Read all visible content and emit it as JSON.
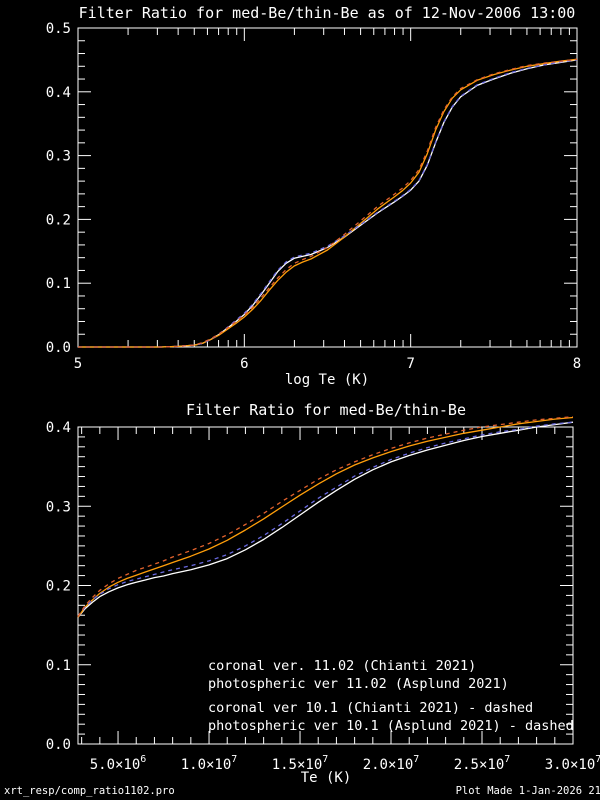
{
  "page_background": "#000000",
  "footer": {
    "left": "xrt_resp/comp_ratio1102.pro",
    "right": "Plot Made  1-Jan-2026 21"
  },
  "chart_data": [
    {
      "type": "line",
      "title": "Filter Ratio for med-Be/thin-Be as of 12-Nov-2006 13:00",
      "xlabel": "log Te (K)",
      "ylabel": "",
      "xlim": [
        5,
        8
      ],
      "ylim": [
        0,
        0.5
      ],
      "x_scale": "log",
      "grid": false,
      "x_ticks": [
        {
          "value": 5,
          "label": "5"
        },
        {
          "value": 6,
          "label": "6"
        },
        {
          "value": 7,
          "label": "7"
        },
        {
          "value": 8,
          "label": "8"
        }
      ],
      "y_ticks": [
        {
          "value": 0.0,
          "label": "0.0"
        },
        {
          "value": 0.1,
          "label": "0.1"
        },
        {
          "value": 0.2,
          "label": "0.2"
        },
        {
          "value": 0.3,
          "label": "0.3"
        },
        {
          "value": 0.4,
          "label": "0.4"
        },
        {
          "value": 0.5,
          "label": "0.5"
        }
      ],
      "y_minor_step": 0.02,
      "series": [
        {
          "name": "coronal ver. 11.02 (Chianti 2021)",
          "color": "#FFFFFF",
          "style": "solid",
          "x": [
            5.0,
            5.5,
            5.6,
            5.7,
            5.75,
            5.8,
            5.85,
            5.9,
            5.95,
            6.0,
            6.05,
            6.1,
            6.15,
            6.2,
            6.25,
            6.3,
            6.35,
            6.4,
            6.5,
            6.6,
            6.7,
            6.8,
            6.9,
            6.95,
            7.0,
            7.05,
            7.1,
            7.15,
            7.2,
            7.25,
            7.3,
            7.4,
            7.5,
            7.6,
            7.7,
            7.8,
            7.9,
            8.0
          ],
          "y": [
            0,
            0,
            0.001,
            0.003,
            0.006,
            0.012,
            0.02,
            0.03,
            0.04,
            0.051,
            0.065,
            0.082,
            0.1,
            0.118,
            0.131,
            0.139,
            0.142,
            0.145,
            0.156,
            0.172,
            0.191,
            0.21,
            0.227,
            0.236,
            0.246,
            0.26,
            0.285,
            0.32,
            0.352,
            0.376,
            0.392,
            0.41,
            0.42,
            0.429,
            0.436,
            0.442,
            0.446,
            0.45
          ]
        },
        {
          "name": "photospheric ver 11.02 (Asplund 2021)",
          "color": "#FF9E0A",
          "style": "solid",
          "x": [
            5.0,
            5.5,
            5.6,
            5.7,
            5.75,
            5.8,
            5.85,
            5.9,
            5.95,
            6.0,
            6.05,
            6.1,
            6.15,
            6.2,
            6.25,
            6.3,
            6.35,
            6.4,
            6.5,
            6.6,
            6.7,
            6.8,
            6.9,
            6.95,
            7.0,
            7.05,
            7.1,
            7.15,
            7.2,
            7.25,
            7.3,
            7.4,
            7.5,
            7.6,
            7.7,
            7.8,
            7.9,
            8.0
          ],
          "y": [
            0,
            0,
            0.001,
            0.003,
            0.006,
            0.012,
            0.019,
            0.028,
            0.037,
            0.047,
            0.059,
            0.073,
            0.089,
            0.104,
            0.117,
            0.127,
            0.133,
            0.138,
            0.152,
            0.172,
            0.194,
            0.216,
            0.235,
            0.245,
            0.257,
            0.274,
            0.303,
            0.34,
            0.369,
            0.39,
            0.403,
            0.418,
            0.427,
            0.434,
            0.44,
            0.444,
            0.448,
            0.451
          ]
        },
        {
          "name": "coronal ver 10.1 (Chianti 2021) - dashed",
          "color": "#6969E0",
          "style": "dashed",
          "x": [
            5.0,
            5.5,
            5.6,
            5.7,
            5.75,
            5.8,
            5.85,
            5.9,
            5.95,
            6.0,
            6.05,
            6.1,
            6.15,
            6.2,
            6.25,
            6.3,
            6.35,
            6.4,
            6.5,
            6.6,
            6.7,
            6.8,
            6.9,
            6.95,
            7.0,
            7.05,
            7.1,
            7.15,
            7.2,
            7.25,
            7.3,
            7.4,
            7.5,
            7.6,
            7.7,
            7.8,
            7.9,
            8.0
          ],
          "y": [
            0,
            0,
            0.001,
            0.003,
            0.006,
            0.012,
            0.021,
            0.031,
            0.042,
            0.053,
            0.067,
            0.084,
            0.102,
            0.12,
            0.133,
            0.141,
            0.144,
            0.147,
            0.158,
            0.174,
            0.192,
            0.211,
            0.228,
            0.237,
            0.247,
            0.261,
            0.286,
            0.321,
            0.353,
            0.377,
            0.393,
            0.411,
            0.421,
            0.43,
            0.437,
            0.442,
            0.447,
            0.45
          ]
        },
        {
          "name": "photospheric ver 10.1 (Asplund 2021) - dashed",
          "color": "#E2622D",
          "style": "dashed",
          "x": [
            5.0,
            5.5,
            5.6,
            5.7,
            5.75,
            5.8,
            5.85,
            5.9,
            5.95,
            6.0,
            6.05,
            6.1,
            6.15,
            6.2,
            6.25,
            6.3,
            6.35,
            6.4,
            6.5,
            6.6,
            6.7,
            6.8,
            6.9,
            6.95,
            7.0,
            7.05,
            7.1,
            7.15,
            7.2,
            7.25,
            7.3,
            7.4,
            7.5,
            7.6,
            7.7,
            7.8,
            7.9,
            8.0
          ],
          "y": [
            0,
            0,
            0.001,
            0.003,
            0.007,
            0.013,
            0.021,
            0.03,
            0.04,
            0.05,
            0.062,
            0.077,
            0.093,
            0.108,
            0.121,
            0.131,
            0.137,
            0.142,
            0.156,
            0.176,
            0.198,
            0.22,
            0.239,
            0.249,
            0.261,
            0.278,
            0.307,
            0.344,
            0.372,
            0.392,
            0.405,
            0.419,
            0.428,
            0.435,
            0.441,
            0.445,
            0.448,
            0.451
          ]
        }
      ]
    },
    {
      "type": "line",
      "title": "Filter Ratio for med-Be/thin-Be",
      "xlabel": "Te (K)",
      "ylabel": "",
      "xlim": [
        2800000,
        30000000
      ],
      "ylim": [
        0,
        0.4
      ],
      "x_scale": "linear",
      "grid": false,
      "x_ticks": [
        {
          "value": 5000000,
          "base": "5.0×10",
          "exp": "6"
        },
        {
          "value": 10000000,
          "base": "1.0×10",
          "exp": "7"
        },
        {
          "value": 15000000,
          "base": "1.5×10",
          "exp": "7"
        },
        {
          "value": 20000000,
          "base": "2.0×10",
          "exp": "7"
        },
        {
          "value": 25000000,
          "base": "2.5×10",
          "exp": "7"
        },
        {
          "value": 30000000,
          "base": "3.0×10",
          "exp": "7"
        }
      ],
      "x_minor_step": 1000000,
      "y_ticks": [
        {
          "value": 0.0,
          "label": "0.0"
        },
        {
          "value": 0.1,
          "label": "0.1"
        },
        {
          "value": 0.2,
          "label": "0.2"
        },
        {
          "value": 0.3,
          "label": "0.3"
        },
        {
          "value": 0.4,
          "label": "0.4"
        }
      ],
      "y_minor_step": 0.0125,
      "legend_position": "inside-bottom-right",
      "legend": [
        {
          "label": "coronal ver. 11.02 (Chianti 2021)",
          "color": "#FFFFFF"
        },
        {
          "label": "photospheric ver 11.02 (Asplund 2021)",
          "color": "#FF9E0A"
        },
        {
          "label": "coronal ver 10.1 (Chianti 2021) - dashed",
          "color": "#6969E0"
        },
        {
          "label": "photospheric ver 10.1 (Asplund 2021) - dashed",
          "color": "#E2622D"
        }
      ],
      "series": [
        {
          "name": "coronal ver. 11.02 (Chianti 2021)",
          "color": "#FFFFFF",
          "style": "solid",
          "x": [
            2800000,
            3200000,
            3600000,
            4000000,
            4500000,
            5000000,
            5500000,
            6000000,
            6500000,
            7000000,
            7500000,
            8000000,
            9000000,
            10000000,
            11000000,
            12000000,
            13000000,
            14000000,
            15000000,
            16000000,
            17000000,
            18000000,
            19000000,
            20000000,
            21000000,
            22000000,
            23000000,
            24000000,
            25000000,
            26000000,
            27000000,
            28000000,
            29000000,
            30000000
          ],
          "y": [
            0.16,
            0.171,
            0.179,
            0.186,
            0.192,
            0.197,
            0.201,
            0.204,
            0.207,
            0.21,
            0.212,
            0.215,
            0.22,
            0.226,
            0.234,
            0.245,
            0.258,
            0.273,
            0.289,
            0.305,
            0.32,
            0.334,
            0.346,
            0.356,
            0.364,
            0.371,
            0.377,
            0.383,
            0.388,
            0.392,
            0.396,
            0.4,
            0.403,
            0.406
          ]
        },
        {
          "name": "photospheric ver 11.02 (Asplund 2021)",
          "color": "#FF9E0A",
          "style": "solid",
          "x": [
            2800000,
            3200000,
            3600000,
            4000000,
            4500000,
            5000000,
            5500000,
            6000000,
            6500000,
            7000000,
            7500000,
            8000000,
            9000000,
            10000000,
            11000000,
            12000000,
            13000000,
            14000000,
            15000000,
            16000000,
            17000000,
            18000000,
            19000000,
            20000000,
            21000000,
            22000000,
            23000000,
            24000000,
            25000000,
            26000000,
            27000000,
            28000000,
            29000000,
            30000000
          ],
          "y": [
            0.16,
            0.173,
            0.182,
            0.19,
            0.198,
            0.204,
            0.209,
            0.213,
            0.217,
            0.221,
            0.225,
            0.229,
            0.237,
            0.246,
            0.257,
            0.27,
            0.284,
            0.299,
            0.314,
            0.328,
            0.341,
            0.352,
            0.361,
            0.369,
            0.376,
            0.382,
            0.387,
            0.392,
            0.396,
            0.4,
            0.404,
            0.407,
            0.41,
            0.412
          ]
        },
        {
          "name": "coronal ver 10.1 (Chianti 2021) - dashed",
          "color": "#6969E0",
          "style": "dashed",
          "x": [
            2800000,
            3200000,
            3600000,
            4000000,
            4500000,
            5000000,
            5500000,
            6000000,
            6500000,
            7000000,
            7500000,
            8000000,
            9000000,
            10000000,
            11000000,
            12000000,
            13000000,
            14000000,
            15000000,
            16000000,
            17000000,
            18000000,
            19000000,
            20000000,
            21000000,
            22000000,
            23000000,
            24000000,
            25000000,
            26000000,
            27000000,
            28000000,
            29000000,
            30000000
          ],
          "y": [
            0.161,
            0.173,
            0.182,
            0.189,
            0.196,
            0.201,
            0.205,
            0.208,
            0.211,
            0.214,
            0.217,
            0.22,
            0.225,
            0.231,
            0.239,
            0.25,
            0.263,
            0.278,
            0.294,
            0.31,
            0.324,
            0.338,
            0.349,
            0.359,
            0.367,
            0.374,
            0.38,
            0.385,
            0.39,
            0.394,
            0.397,
            0.401,
            0.404,
            0.406
          ]
        },
        {
          "name": "photospheric ver 10.1 (Asplund 2021) - dashed",
          "color": "#E2622D",
          "style": "dashed",
          "x": [
            2800000,
            3200000,
            3600000,
            4000000,
            4500000,
            5000000,
            5500000,
            6000000,
            6500000,
            7000000,
            7500000,
            8000000,
            9000000,
            10000000,
            11000000,
            12000000,
            13000000,
            14000000,
            15000000,
            16000000,
            17000000,
            18000000,
            19000000,
            20000000,
            21000000,
            22000000,
            23000000,
            24000000,
            25000000,
            26000000,
            27000000,
            28000000,
            29000000,
            30000000
          ],
          "y": [
            0.161,
            0.175,
            0.185,
            0.194,
            0.202,
            0.209,
            0.214,
            0.219,
            0.223,
            0.227,
            0.231,
            0.236,
            0.244,
            0.253,
            0.264,
            0.277,
            0.291,
            0.306,
            0.32,
            0.334,
            0.346,
            0.356,
            0.365,
            0.373,
            0.38,
            0.386,
            0.391,
            0.396,
            0.4,
            0.403,
            0.406,
            0.409,
            0.411,
            0.413
          ]
        }
      ]
    }
  ]
}
